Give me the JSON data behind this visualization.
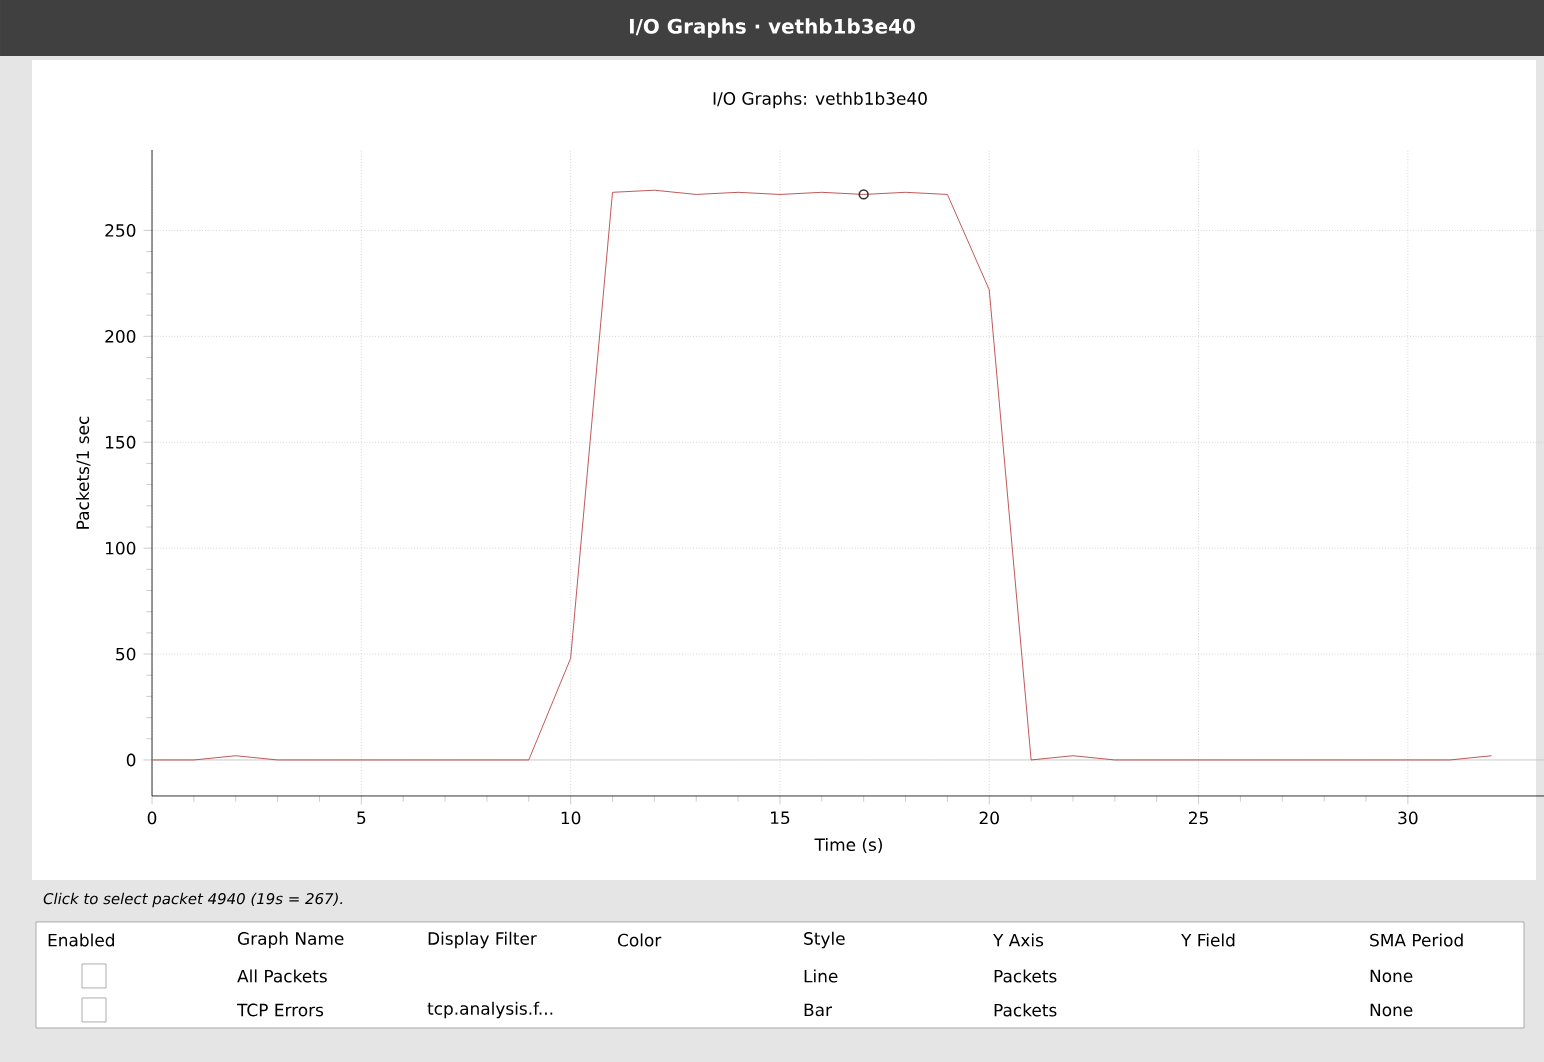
{
  "chart_data": {
    "type": "line",
    "title": "I/O Graphs: vethb1b3e40",
    "xlabel": "Time (s)",
    "ylabel": "Packets/1 sec",
    "x": [
      0,
      1,
      2,
      3,
      4,
      5,
      6,
      7,
      8,
      9,
      10,
      11,
      12,
      13,
      14,
      15,
      16,
      17,
      18,
      19,
      20,
      21,
      22,
      23,
      24,
      25,
      26,
      27,
      28,
      29,
      30,
      31,
      32
    ],
    "series": [
      {
        "color": "#b03030",
        "values": [
          0,
          0,
          2,
          0,
          0,
          0,
          0,
          0,
          0,
          0,
          48,
          268,
          269,
          267,
          268,
          267,
          268,
          267,
          268,
          267,
          222,
          0,
          2,
          0,
          0,
          0,
          0,
          0,
          0,
          0,
          0,
          0,
          2
        ]
      },
      {
        "type": "scatter",
        "color": "#333333",
        "x": [
          17
        ],
        "values": [
          267
        ],
        "marker": "circle"
      }
    ],
    "xlim": [
      0,
      33.3
    ],
    "ylim": [
      -17,
      288
    ],
    "xticks": [
      0,
      5,
      10,
      15,
      20,
      25,
      30
    ],
    "yticks": [
      0,
      50,
      100,
      150,
      200,
      250
    ],
    "grid": true,
    "marker": "none",
    "line_style": "solid",
    "ref_lines": [
      {
        "axis": "y",
        "value": 0,
        "color": "#c8c8c8"
      }
    ],
    "annotations": [
      "I/O Graphs · vethb1b3e40",
      "Click to select packet 4940 (19s = 267).",
      "Enabled",
      "Graph Name",
      "Display Filter",
      "Color",
      "Style",
      "Y Axis",
      "Y Field",
      "SMA Period",
      "All Packets",
      "Line",
      "Packets",
      "None",
      "TCP Errors",
      "tcp.analysis.f...",
      "Bar",
      "Packets",
      "None"
    ]
  }
}
